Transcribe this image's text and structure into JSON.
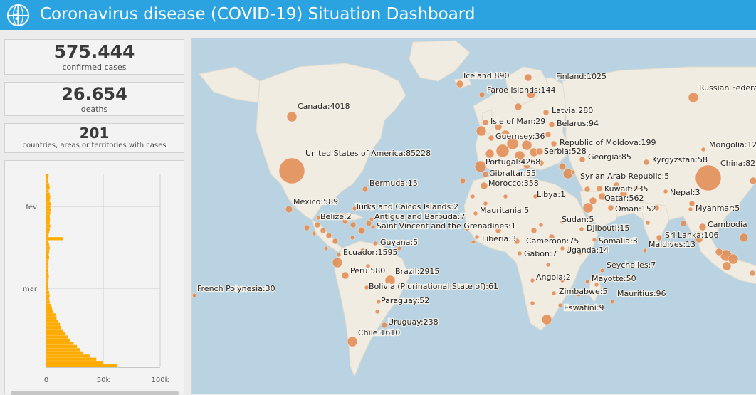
{
  "header": {
    "title": "Coronavirus disease (COVID-19) Situation Dashboard"
  },
  "stats": {
    "confirmed": {
      "value": "575.444",
      "label": "confirmed cases"
    },
    "deaths": {
      "value": "26.654",
      "label": "deaths"
    },
    "countries": {
      "value": "201",
      "label": "countries, areas or territories with cases"
    }
  },
  "colors": {
    "header": "#2aa3e0",
    "bar": "#ffab00",
    "bubble": "#e0894f",
    "land": "#f1ece1",
    "water": "#b9d3e2"
  },
  "chart_data": {
    "type": "bar",
    "orientation": "horizontal",
    "x_ticks": [
      "0",
      "50k",
      "100k"
    ],
    "xlim": [
      0,
      100000
    ],
    "y_ticks": [
      "fev",
      "mar"
    ],
    "values": [
      2000,
      1500,
      1800,
      2500,
      3000,
      2200,
      3000,
      3500,
      3000,
      4000,
      3500,
      3800,
      3500,
      3000,
      3200,
      3000,
      3500,
      3000,
      2500,
      2000,
      15000,
      2000,
      2500,
      3000,
      2500,
      2200,
      2500,
      2000,
      1800,
      2000,
      1500,
      2000,
      2200,
      2000,
      1800,
      1500,
      2000,
      2500,
      3000,
      2500,
      3000,
      4000,
      5000,
      6000,
      8000,
      9000,
      10000,
      12000,
      13000,
      15000,
      17000,
      19000,
      21000,
      24000,
      27000,
      30000,
      32000,
      38000,
      44000,
      50000,
      62000
    ]
  },
  "map": {
    "bubbles": [
      {
        "name": "United States of America",
        "value": "85228",
        "x": 140,
        "y": 186,
        "r": 18,
        "lx": 159,
        "ly": 165
      },
      {
        "name": "Canada",
        "value": "4018",
        "x": 140,
        "y": 110,
        "r": 7,
        "lx": 148,
        "ly": 99
      },
      {
        "name": "Iceland",
        "value": "890",
        "x": 376,
        "y": 64,
        "r": 5,
        "lx": 381,
        "ly": 56
      },
      {
        "name": "Faroe Islands",
        "value": "144",
        "x": 407,
        "y": 79,
        "r": 4,
        "lx": 414,
        "ly": 76
      },
      {
        "name": "Finland",
        "value": "1025",
        "x": 472,
        "y": 55,
        "r": 5,
        "lx": 511,
        "ly": 57
      },
      {
        "name": "Russian Federation",
        "value": "",
        "x": 704,
        "y": 83,
        "r": 7,
        "lx": 712,
        "ly": 73
      },
      {
        "name": "Latvia",
        "value": "280",
        "x": 497,
        "y": 104,
        "r": 4,
        "lx": 505,
        "ly": 105
      },
      {
        "name": "Isle of Man",
        "value": "29",
        "x": 412,
        "y": 118,
        "r": 4,
        "lx": 419,
        "ly": 120
      },
      {
        "name": "Belarus",
        "value": "94",
        "x": 505,
        "y": 121,
        "r": 4,
        "lx": 512,
        "ly": 123
      },
      {
        "name": "Guernsey",
        "value": "36",
        "x": 420,
        "y": 140,
        "r": 4,
        "lx": 426,
        "ly": 141
      },
      {
        "name": "Republic of Moldova",
        "value": "199",
        "x": 508,
        "y": 148,
        "r": 4,
        "lx": 516,
        "ly": 150
      },
      {
        "name": "Serbia",
        "value": "528",
        "x": 488,
        "y": 159,
        "r": 5,
        "lx": 494,
        "ly": 162
      },
      {
        "name": "Georgia",
        "value": "85",
        "x": 548,
        "y": 170,
        "r": 4,
        "lx": 556,
        "ly": 170
      },
      {
        "name": "Kyrgyzstan",
        "value": "58",
        "x": 638,
        "y": 174,
        "r": 4,
        "lx": 646,
        "ly": 174
      },
      {
        "name": "Mongolia",
        "value": "12",
        "x": 718,
        "y": 156,
        "r": 3,
        "lx": 726,
        "ly": 153
      },
      {
        "name": "China",
        "value": "82",
        "x": 725,
        "y": 196,
        "r": 18,
        "lx": 742,
        "ly": 179
      },
      {
        "name": "Portugal",
        "value": "4268",
        "x": 405,
        "y": 180,
        "r": 8,
        "lx": 412,
        "ly": 177
      },
      {
        "name": "Gibraltar",
        "value": "55",
        "x": 412,
        "y": 191,
        "r": 4,
        "lx": 417,
        "ly": 193
      },
      {
        "name": "Morocco",
        "value": "358",
        "x": 410,
        "y": 207,
        "r": 5,
        "lx": 416,
        "ly": 207
      },
      {
        "name": "Syrian Arab Republic",
        "value": "5",
        "x": 535,
        "y": 188,
        "r": 3,
        "lx": 545,
        "ly": 197
      },
      {
        "name": "Kuwait",
        "value": "235",
        "x": 572,
        "y": 211,
        "r": 4,
        "lx": 579,
        "ly": 215
      },
      {
        "name": "Qatar",
        "value": "562",
        "x": 576,
        "y": 222,
        "r": 5,
        "lx": 579,
        "ly": 228
      },
      {
        "name": "Oman",
        "value": "152",
        "x": 588,
        "y": 238,
        "r": 4,
        "lx": 594,
        "ly": 243
      },
      {
        "name": "Nepal",
        "value": "3",
        "x": 665,
        "y": 215,
        "r": 3,
        "lx": 671,
        "ly": 220
      },
      {
        "name": "Myanmar",
        "value": "5",
        "x": 700,
        "y": 240,
        "r": 3,
        "lx": 707,
        "ly": 242
      },
      {
        "name": "Cambodia",
        "value": "",
        "x": 717,
        "y": 265,
        "r": 5,
        "lx": 724,
        "ly": 265
      },
      {
        "name": "Sri Lanka",
        "value": "106",
        "x": 656,
        "y": 280,
        "r": 4,
        "lx": 664,
        "ly": 280
      },
      {
        "name": "Maldives",
        "value": "13",
        "x": 636,
        "y": 298,
        "r": 3,
        "lx": 641,
        "ly": 293
      },
      {
        "name": "Libya",
        "value": "1",
        "x": 482,
        "y": 222,
        "r": 3,
        "lx": 484,
        "ly": 223
      },
      {
        "name": "Mauritania",
        "value": "5",
        "x": 398,
        "y": 246,
        "r": 3,
        "lx": 404,
        "ly": 245
      },
      {
        "name": "Sudan",
        "value": "5",
        "x": 520,
        "y": 258,
        "r": 3,
        "lx": 519,
        "ly": 258
      },
      {
        "name": "Djibouti",
        "value": "15",
        "x": 547,
        "y": 268,
        "r": 3,
        "lx": 554,
        "ly": 270
      },
      {
        "name": "Somalia",
        "value": "3",
        "x": 565,
        "y": 283,
        "r": 3,
        "lx": 571,
        "ly": 288
      },
      {
        "name": "Liberia",
        "value": "3",
        "x": 400,
        "y": 279,
        "r": 3,
        "lx": 407,
        "ly": 285
      },
      {
        "name": "Cameroon",
        "value": "75",
        "x": 456,
        "y": 285,
        "r": 4,
        "lx": 469,
        "ly": 288
      },
      {
        "name": "Uganda",
        "value": "14",
        "x": 520,
        "y": 295,
        "r": 3,
        "lx": 525,
        "ly": 301
      },
      {
        "name": "Gabon",
        "value": "7",
        "x": 460,
        "y": 302,
        "r": 3,
        "lx": 466,
        "ly": 306
      },
      {
        "name": "Seychelles",
        "value": "7",
        "x": 576,
        "y": 326,
        "r": 3,
        "lx": 582,
        "ly": 322
      },
      {
        "name": "Angola",
        "value": "2",
        "x": 478,
        "y": 340,
        "r": 3,
        "lx": 483,
        "ly": 339
      },
      {
        "name": "Mayotte",
        "value": "50",
        "x": 555,
        "y": 342,
        "r": 3,
        "lx": 561,
        "ly": 341
      },
      {
        "name": "Zimbabwe",
        "value": "5",
        "x": 508,
        "y": 358,
        "r": 3,
        "lx": 515,
        "ly": 359
      },
      {
        "name": "Mauritius",
        "value": "96",
        "x": 590,
        "y": 370,
        "r": 3,
        "lx": 597,
        "ly": 362
      },
      {
        "name": "Eswatini",
        "value": "9",
        "x": 517,
        "y": 375,
        "r": 3,
        "lx": 522,
        "ly": 382
      },
      {
        "name": "Bermuda",
        "value": "15",
        "x": 243,
        "y": 212,
        "r": 4,
        "lx": 249,
        "ly": 207
      },
      {
        "name": "Mexico",
        "value": "589",
        "x": 136,
        "y": 240,
        "r": 5,
        "lx": 142,
        "ly": 233
      },
      {
        "name": "Turks and Caicos Islands",
        "value": "2",
        "x": 228,
        "y": 239,
        "r": 3,
        "lx": 229,
        "ly": 240
      },
      {
        "name": "Belize",
        "value": "2",
        "x": 177,
        "y": 252,
        "r": 3,
        "lx": 180,
        "ly": 254
      },
      {
        "name": "Antigua and Barbuda",
        "value": "7",
        "x": 252,
        "y": 254,
        "r": 3,
        "lx": 256,
        "ly": 254
      },
      {
        "name": "Saint Vincent and the Grenadines",
        "value": "1",
        "x": 254,
        "y": 265,
        "r": 3,
        "lx": 259,
        "ly": 267
      },
      {
        "name": "Guyana",
        "value": "5",
        "x": 257,
        "y": 288,
        "r": 3,
        "lx": 264,
        "ly": 290
      },
      {
        "name": "Ecuador",
        "value": "1595",
        "x": 204,
        "y": 315,
        "r": 7,
        "lx": 212,
        "ly": 304
      },
      {
        "name": "Peru",
        "value": "580",
        "x": 215,
        "y": 333,
        "r": 5,
        "lx": 222,
        "ly": 330
      },
      {
        "name": "Brazil",
        "value": "2915",
        "x": 278,
        "y": 340,
        "r": 7,
        "lx": 285,
        "ly": 331
      },
      {
        "name": "Bolivia (Plurinational State of)",
        "value": "61",
        "x": 245,
        "y": 350,
        "r": 3,
        "lx": 248,
        "ly": 352
      },
      {
        "name": "Paraguay",
        "value": "52",
        "x": 262,
        "y": 370,
        "r": 3,
        "lx": 265,
        "ly": 372
      },
      {
        "name": "Uruguay",
        "value": "238",
        "x": 270,
        "y": 403,
        "r": 4,
        "lx": 275,
        "ly": 402
      },
      {
        "name": "Chile",
        "value": "1610",
        "x": 225,
        "y": 426,
        "r": 7,
        "lx": 233,
        "ly": 417
      },
      {
        "name": "French Polynesia",
        "value": "30",
        "x": 3,
        "y": 361,
        "r": 3,
        "lx": 7,
        "ly": 355
      }
    ],
    "extra_bubbles": [
      {
        "x": 406,
        "y": 130,
        "r": 7
      },
      {
        "x": 430,
        "y": 124,
        "r": 5
      },
      {
        "x": 440,
        "y": 135,
        "r": 6
      },
      {
        "x": 450,
        "y": 148,
        "r": 8
      },
      {
        "x": 470,
        "y": 150,
        "r": 7
      },
      {
        "x": 436,
        "y": 158,
        "r": 9
      },
      {
        "x": 418,
        "y": 162,
        "r": 6
      },
      {
        "x": 460,
        "y": 165,
        "r": 7
      },
      {
        "x": 480,
        "y": 160,
        "r": 6
      },
      {
        "x": 445,
        "y": 175,
        "r": 5
      },
      {
        "x": 470,
        "y": 178,
        "r": 5
      },
      {
        "x": 490,
        "y": 175,
        "r": 4
      },
      {
        "x": 500,
        "y": 135,
        "r": 4
      },
      {
        "x": 476,
        "y": 78,
        "r": 6
      },
      {
        "x": 458,
        "y": 96,
        "r": 5
      },
      {
        "x": 520,
        "y": 180,
        "r": 5
      },
      {
        "x": 528,
        "y": 190,
        "r": 7
      },
      {
        "x": 555,
        "y": 212,
        "r": 4
      },
      {
        "x": 556,
        "y": 238,
        "r": 7
      },
      {
        "x": 563,
        "y": 228,
        "r": 5
      },
      {
        "x": 596,
        "y": 206,
        "r": 4
      },
      {
        "x": 606,
        "y": 218,
        "r": 5
      },
      {
        "x": 625,
        "y": 210,
        "r": 4
      },
      {
        "x": 652,
        "y": 238,
        "r": 4
      },
      {
        "x": 640,
        "y": 259,
        "r": 3
      },
      {
        "x": 690,
        "y": 260,
        "r": 4
      },
      {
        "x": 702,
        "y": 232,
        "r": 4
      },
      {
        "x": 712,
        "y": 282,
        "r": 5
      },
      {
        "x": 750,
        "y": 305,
        "r": 8
      },
      {
        "x": 760,
        "y": 310,
        "r": 7
      },
      {
        "x": 775,
        "y": 280,
        "r": 6
      },
      {
        "x": 751,
        "y": 320,
        "r": 6
      },
      {
        "x": 740,
        "y": 300,
        "r": 5
      },
      {
        "x": 787,
        "y": 330,
        "r": 4
      },
      {
        "x": 788,
        "y": 200,
        "r": 5
      },
      {
        "x": 380,
        "y": 200,
        "r": 4
      },
      {
        "x": 394,
        "y": 222,
        "r": 3
      },
      {
        "x": 412,
        "y": 232,
        "r": 3
      },
      {
        "x": 440,
        "y": 222,
        "r": 3
      },
      {
        "x": 386,
        "y": 268,
        "r": 3
      },
      {
        "x": 395,
        "y": 286,
        "r": 3
      },
      {
        "x": 418,
        "y": 282,
        "r": 4
      },
      {
        "x": 430,
        "y": 270,
        "r": 4
      },
      {
        "x": 480,
        "y": 270,
        "r": 4
      },
      {
        "x": 490,
        "y": 262,
        "r": 3
      },
      {
        "x": 505,
        "y": 279,
        "r": 4
      },
      {
        "x": 530,
        "y": 296,
        "r": 4
      },
      {
        "x": 545,
        "y": 300,
        "r": 4
      },
      {
        "x": 500,
        "y": 318,
        "r": 3
      },
      {
        "x": 520,
        "y": 340,
        "r": 3
      },
      {
        "x": 478,
        "y": 372,
        "r": 3
      },
      {
        "x": 498,
        "y": 395,
        "r": 7
      },
      {
        "x": 543,
        "y": 360,
        "r": 3
      },
      {
        "x": 568,
        "y": 346,
        "r": 3
      },
      {
        "x": 176,
        "y": 262,
        "r": 4
      },
      {
        "x": 184,
        "y": 270,
        "r": 4
      },
      {
        "x": 192,
        "y": 277,
        "r": 4
      },
      {
        "x": 201,
        "y": 285,
        "r": 4
      },
      {
        "x": 215,
        "y": 257,
        "r": 4
      },
      {
        "x": 226,
        "y": 262,
        "r": 4
      },
      {
        "x": 238,
        "y": 270,
        "r": 5
      },
      {
        "x": 248,
        "y": 260,
        "r": 4
      },
      {
        "x": 225,
        "y": 280,
        "r": 3
      },
      {
        "x": 240,
        "y": 300,
        "r": 5
      },
      {
        "x": 188,
        "y": 295,
        "r": 3
      },
      {
        "x": 171,
        "y": 274,
        "r": 3
      },
      {
        "x": 161,
        "y": 266,
        "r": 4
      },
      {
        "x": 247,
        "y": 320,
        "r": 3
      },
      {
        "x": 291,
        "y": 295,
        "r": 3
      },
      {
        "x": 260,
        "y": 384,
        "r": 3
      },
      {
        "x": 247,
        "y": 412,
        "r": 3
      },
      {
        "x": 265,
        "y": 250,
        "r": 3
      },
      {
        "x": 206,
        "y": 304,
        "r": 3
      },
      {
        "x": 196,
        "y": 250,
        "r": 3
      },
      {
        "x": 215,
        "y": 248,
        "r": 3
      }
    ]
  }
}
